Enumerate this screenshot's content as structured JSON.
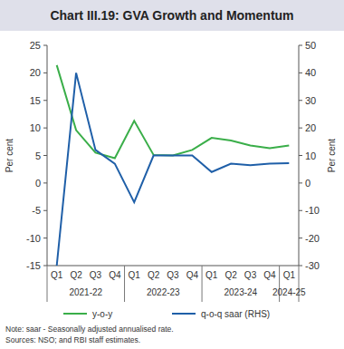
{
  "chart_data": {
    "type": "line",
    "title": "Chart III.19: GVA Growth and Momentum",
    "categories": [
      "Q1",
      "Q2",
      "Q3",
      "Q4",
      "Q1",
      "Q2",
      "Q3",
      "Q4",
      "Q1",
      "Q2",
      "Q3",
      "Q4",
      "Q1"
    ],
    "group_labels": [
      "2021-22",
      "2022-23",
      "2023-24",
      "2024-25"
    ],
    "group_sizes": [
      4,
      4,
      4,
      1
    ],
    "ylabel": "Per cent",
    "y2label": "Per cent",
    "ylim": [
      -15,
      25
    ],
    "yticks": [
      -15,
      -10,
      -5,
      0,
      5,
      10,
      15,
      20,
      25
    ],
    "y2lim": [
      -30,
      50
    ],
    "y2ticks": [
      -30,
      -20,
      -10,
      0,
      10,
      20,
      30,
      40,
      50
    ],
    "grid": false,
    "legend": "bottom",
    "series": [
      {
        "name": "y-o-y",
        "color": "#3aae49",
        "axis": "y",
        "values": [
          21.4,
          9.6,
          5.5,
          4.5,
          11.3,
          5.1,
          5.0,
          6.0,
          8.2,
          7.7,
          6.8,
          6.3,
          6.8
        ]
      },
      {
        "name": "q-o-q saar (RHS)",
        "color": "#1f5fa8",
        "axis": "y2",
        "values": [
          -30,
          40,
          12,
          7,
          -7,
          10,
          10,
          10,
          4,
          7,
          6.5,
          7,
          7.2
        ]
      }
    ],
    "note": "Note: saar - Seasonally adjusted annualised rate.",
    "sources": "Sources: NSO; and RBI staff estimates."
  }
}
